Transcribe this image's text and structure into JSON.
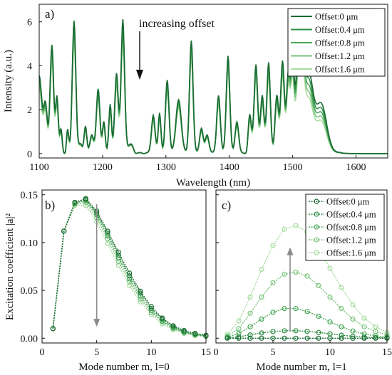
{
  "chart_data": [
    {
      "type": "line",
      "panel_label": "a)",
      "xlabel": "Wavelength (nm)",
      "ylabel": "Intensity (a.u.)",
      "xlim": [
        1100,
        1650
      ],
      "ylim": [
        -0.2,
        6.8
      ],
      "xticks": [
        1100,
        1200,
        1300,
        1400,
        1500,
        1600
      ],
      "yticks": [
        0,
        2,
        4,
        6
      ],
      "annotation": "increasing offset",
      "legend_position": "top-right",
      "legend": [
        "Offset:0 μm",
        "Offset:0.4 μm",
        "Offset:0.8 μm",
        "Offset:1.2 μm",
        "Offset:1.6 μm"
      ],
      "series_colors": [
        "#1a6b33",
        "#2f8e45",
        "#4aa85a",
        "#7cc47e",
        "#a8dca0"
      ],
      "peaks": [
        {
          "x": 1100,
          "y": 3.5,
          "w": 6
        },
        {
          "x": 1110,
          "y": 2.1,
          "w": 4
        },
        {
          "x": 1120,
          "y": 4.9,
          "w": 4
        },
        {
          "x": 1128,
          "y": 2.5,
          "w": 3
        },
        {
          "x": 1135,
          "y": 1.3,
          "w": 3
        },
        {
          "x": 1144,
          "y": 1.5,
          "w": 3
        },
        {
          "x": 1155,
          "y": 6.0,
          "w": 4
        },
        {
          "x": 1165,
          "y": 0.4,
          "w": 4
        },
        {
          "x": 1173,
          "y": 1.2,
          "w": 3
        },
        {
          "x": 1183,
          "y": 0.8,
          "w": 4
        },
        {
          "x": 1193,
          "y": 2.9,
          "w": 4
        },
        {
          "x": 1202,
          "y": 1.4,
          "w": 3
        },
        {
          "x": 1212,
          "y": 2.2,
          "w": 3
        },
        {
          "x": 1222,
          "y": 3.6,
          "w": 4
        },
        {
          "x": 1232,
          "y": 6.05,
          "w": 4
        },
        {
          "x": 1245,
          "y": 0.4,
          "w": 7
        },
        {
          "x": 1280,
          "y": 1.7,
          "w": 4
        },
        {
          "x": 1290,
          "y": 1.8,
          "w": 3
        },
        {
          "x": 1302,
          "y": 3.3,
          "w": 4
        },
        {
          "x": 1320,
          "y": 2.4,
          "w": 6
        },
        {
          "x": 1340,
          "y": 5.1,
          "w": 4
        },
        {
          "x": 1356,
          "y": 1.1,
          "w": 4
        },
        {
          "x": 1365,
          "y": 0.8,
          "w": 4
        },
        {
          "x": 1383,
          "y": 2.6,
          "w": 4
        },
        {
          "x": 1398,
          "y": 4.4,
          "w": 4
        },
        {
          "x": 1412,
          "y": 1.4,
          "w": 4
        },
        {
          "x": 1432,
          "y": 1.8,
          "w": 4
        },
        {
          "x": 1442,
          "y": 4.0,
          "w": 4
        },
        {
          "x": 1452,
          "y": 2.6,
          "w": 4
        },
        {
          "x": 1462,
          "y": 4.1,
          "w": 4
        },
        {
          "x": 1475,
          "y": 2.6,
          "w": 4
        },
        {
          "x": 1484,
          "y": 4.15,
          "w": 4
        },
        {
          "x": 1493,
          "y": 3.5,
          "w": 4
        },
        {
          "x": 1500,
          "y": 4.2,
          "w": 4
        },
        {
          "x": 1508,
          "y": 3.9,
          "w": 4
        },
        {
          "x": 1515,
          "y": 4.3,
          "w": 5
        },
        {
          "x": 1525,
          "y": 3.5,
          "w": 10
        },
        {
          "x": 1545,
          "y": 2.2,
          "w": 12
        }
      ],
      "dips": [
        {
          "x": 1140,
          "y": 0.0
        },
        {
          "x": 1253,
          "y": 0.05
        },
        {
          "x": 1265,
          "y": 0.05
        },
        {
          "x": 1425,
          "y": 0.0
        }
      ],
      "falloff_wavelength": 1575,
      "series_scale": [
        1.0,
        0.96,
        0.92,
        0.88,
        0.84
      ],
      "tail_factor": [
        1.0,
        0.94,
        0.88,
        0.82,
        0.76
      ]
    },
    {
      "type": "line",
      "panel_label": "b)",
      "xlabel": "Mode number m, l=0",
      "ylabel": "Excitation coefficient |a|²",
      "xlim": [
        0,
        15
      ],
      "ylim": [
        -0.005,
        0.155
      ],
      "xticks": [
        0,
        5,
        10,
        15
      ],
      "yticks": [
        0,
        0.05,
        0.1,
        0.15
      ],
      "ytick_labels": [
        "0.00",
        "0.05",
        "0.10",
        "0.15"
      ],
      "series_colors": [
        "#1a6b33",
        "#2f8e45",
        "#4aa85a",
        "#7cc47e",
        "#a8dca0"
      ],
      "x": [
        1,
        2,
        3,
        4,
        5,
        6,
        7,
        8,
        9,
        10,
        11,
        12,
        13,
        14,
        15
      ],
      "series": [
        {
          "name": "Offset:0 μm",
          "values": [
            0.01,
            0.112,
            0.142,
            0.146,
            0.133,
            0.112,
            0.09,
            0.068,
            0.049,
            0.033,
            0.021,
            0.013,
            0.008,
            0.005,
            0.003
          ]
        },
        {
          "name": "Offset:0.4 μm",
          "values": [
            0.01,
            0.112,
            0.142,
            0.145,
            0.131,
            0.11,
            0.087,
            0.065,
            0.047,
            0.031,
            0.02,
            0.012,
            0.007,
            0.004,
            0.003
          ]
        },
        {
          "name": "Offset:0.8 μm",
          "values": [
            0.01,
            0.112,
            0.141,
            0.144,
            0.129,
            0.107,
            0.084,
            0.062,
            0.044,
            0.029,
            0.018,
            0.011,
            0.006,
            0.004,
            0.002
          ]
        },
        {
          "name": "Offset:1.2 μm",
          "values": [
            0.01,
            0.112,
            0.14,
            0.142,
            0.126,
            0.104,
            0.08,
            0.059,
            0.041,
            0.027,
            0.017,
            0.01,
            0.006,
            0.003,
            0.002
          ]
        },
        {
          "name": "Offset:1.6 μm",
          "values": [
            0.01,
            0.112,
            0.139,
            0.139,
            0.122,
            0.099,
            0.076,
            0.055,
            0.038,
            0.025,
            0.015,
            0.009,
            0.005,
            0.003,
            0.002
          ]
        }
      ],
      "arrow": {
        "x": 5,
        "from": 0.14,
        "to": 0.012
      }
    },
    {
      "type": "line",
      "panel_label": "c)",
      "xlabel": "Mode number m, l=1",
      "xlim": [
        0,
        15
      ],
      "ylim": [
        -0.005,
        0.155
      ],
      "xticks": [
        0,
        5,
        10,
        15
      ],
      "legend_position": "top-right",
      "legend": [
        "Offset:0 μm",
        "Offset:0.4 μm",
        "Offset:0.8 μm",
        "Offset:1.2 μm",
        "Offset:1.6 μm"
      ],
      "series_colors": [
        "#1a6b33",
        "#2f8e45",
        "#4aa85a",
        "#7cc47e",
        "#a8dca0"
      ],
      "x": [
        1,
        2,
        3,
        4,
        5,
        6,
        7,
        8,
        9,
        10,
        11,
        12,
        13,
        14,
        15
      ],
      "series": [
        {
          "name": "Offset:0 μm",
          "values": [
            0.0,
            0.0,
            0.0,
            0.0,
            0.0,
            0.0,
            0.0,
            0.0,
            0.0,
            0.0,
            0.0,
            0.0,
            0.0,
            0.0,
            0.0
          ]
        },
        {
          "name": "Offset:0.4 μm",
          "values": [
            0.0003,
            0.0015,
            0.0035,
            0.0055,
            0.007,
            0.0078,
            0.0078,
            0.0072,
            0.006,
            0.0046,
            0.0032,
            0.002,
            0.0012,
            0.0006,
            0.0003
          ]
        },
        {
          "name": "Offset:0.8 μm",
          "values": [
            0.001,
            0.005,
            0.012,
            0.02,
            0.027,
            0.031,
            0.031,
            0.028,
            0.023,
            0.017,
            0.012,
            0.0075,
            0.0045,
            0.0025,
            0.0012
          ]
        },
        {
          "name": "Offset:1.2 μm",
          "values": [
            0.002,
            0.01,
            0.026,
            0.043,
            0.058,
            0.067,
            0.069,
            0.065,
            0.055,
            0.043,
            0.031,
            0.02,
            0.012,
            0.007,
            0.0035
          ]
        },
        {
          "name": "Offset:1.6 μm",
          "values": [
            0.004,
            0.018,
            0.043,
            0.072,
            0.097,
            0.114,
            0.118,
            0.111,
            0.094,
            0.073,
            0.053,
            0.035,
            0.021,
            0.012,
            0.006
          ]
        }
      ],
      "arrow": {
        "x": 6.5,
        "from": 0.007,
        "to": 0.095
      }
    }
  ]
}
